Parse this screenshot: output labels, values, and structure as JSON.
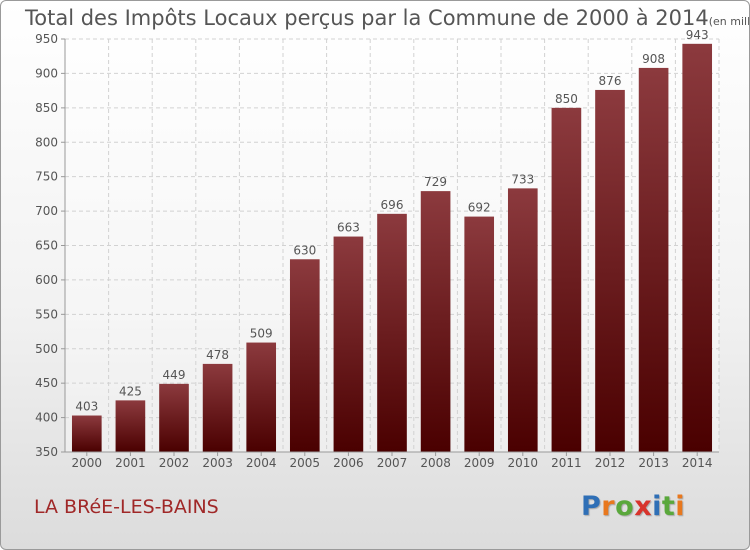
{
  "title": {
    "main": "Total des Impôts Locaux perçus par la Commune de 2000 à 2014",
    "unit": "(en milliers d'€)"
  },
  "commune": "LA BRéE-LES-BAINS",
  "brand": {
    "letters": [
      "P",
      "r",
      "o",
      "x",
      "i",
      "t",
      "i"
    ],
    "colors": [
      "#2f6fb6",
      "#e8781e",
      "#5aa83c",
      "#d8342c",
      "#2f6fb6",
      "#5aa83c",
      "#e8781e"
    ]
  },
  "chart_data": {
    "type": "bar",
    "title": "Total des Impôts Locaux perçus par la Commune de 2000 à 2014",
    "ylabel": "en milliers d'€",
    "xlabel": "",
    "categories": [
      "2000",
      "2001",
      "2002",
      "2003",
      "2004",
      "2005",
      "2006",
      "2007",
      "2008",
      "2009",
      "2010",
      "2011",
      "2012",
      "2013",
      "2014"
    ],
    "values": [
      403,
      425,
      449,
      478,
      509,
      630,
      663,
      696,
      729,
      692,
      733,
      850,
      876,
      908,
      943
    ],
    "ylim": [
      350,
      950
    ],
    "yticks": [
      350,
      400,
      450,
      500,
      550,
      600,
      650,
      700,
      750,
      800,
      850,
      900,
      950
    ],
    "grid": true,
    "bar_color_top": "#8c3a3e",
    "bar_color_bottom": "#4a0000"
  }
}
